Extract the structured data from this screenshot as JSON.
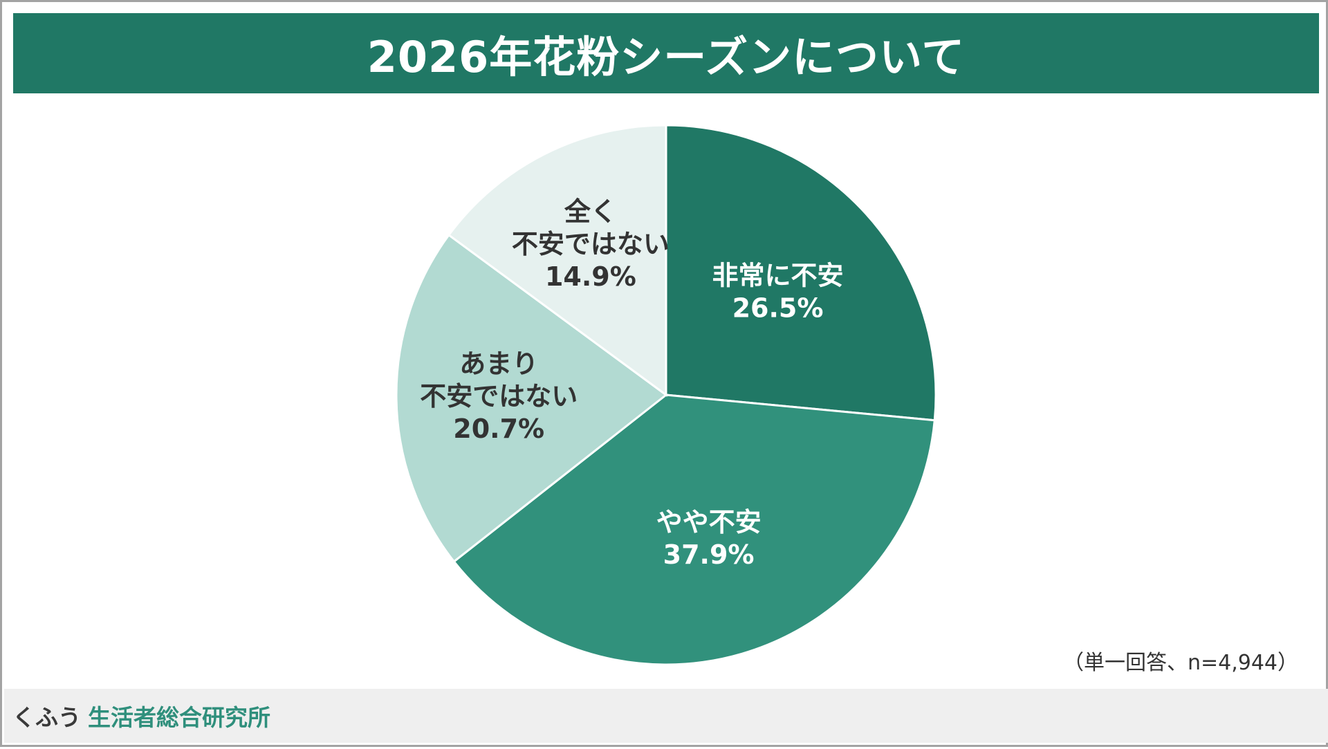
{
  "title": "2026年花粉シーズンについて",
  "note": "（単一回答、n=4,944）",
  "footer": {
    "brand_kana": "くふう",
    "brand_name": "生活者総合研究所"
  },
  "colors": {
    "title_bg": "#207865",
    "slice_dark": "#207865",
    "slice_mid": "#31917C",
    "slice_light": "#B2DAD2",
    "slice_lightest": "#E6F1EF",
    "brand": "#2F8F7C"
  },
  "chart_data": {
    "type": "pie",
    "title": "2026年花粉シーズンについて",
    "start": "12 o'clock, clockwise",
    "slices": [
      {
        "label": [
          "非常に不安"
        ],
        "value": 26.5,
        "value_label": "26.5%",
        "color": "#207865",
        "text_color": "#ffffff"
      },
      {
        "label": [
          "やや不安"
        ],
        "value": 37.9,
        "value_label": "37.9%",
        "color": "#31917C",
        "text_color": "#ffffff"
      },
      {
        "label": [
          "あまり",
          "不安ではない"
        ],
        "value": 20.7,
        "value_label": "20.7%",
        "color": "#B2DAD2",
        "text_color": "#333333"
      },
      {
        "label": [
          "全く",
          "不安ではない"
        ],
        "value": 14.9,
        "value_label": "14.9%",
        "color": "#E6F1EF",
        "text_color": "#333333"
      }
    ]
  }
}
